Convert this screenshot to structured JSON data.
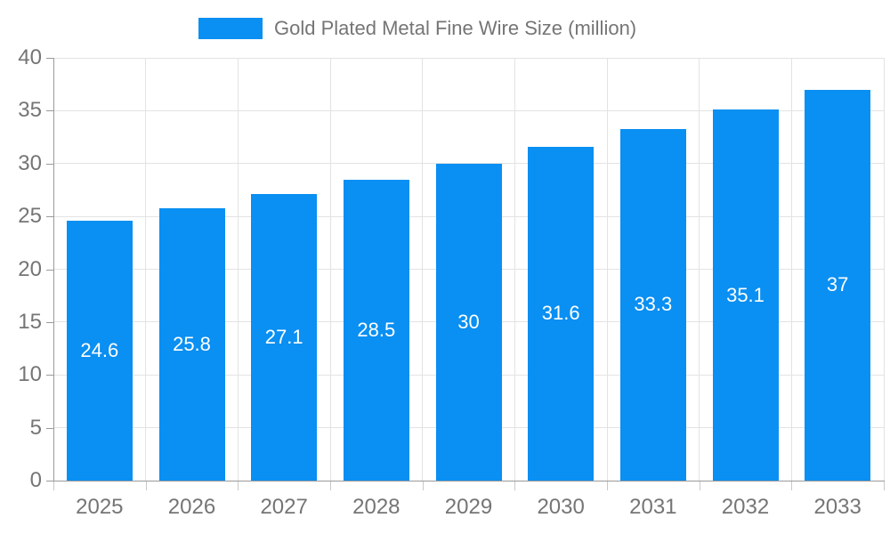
{
  "colors": {
    "bar": "#0a8ff2",
    "axis": "#9a9a9a",
    "grid": "#e3e3e3",
    "tick_text": "#757575",
    "bar_label_text": "#ffffff",
    "background": "#ffffff"
  },
  "legend": {
    "label": "Gold Plated Metal Fine Wire Size (million)"
  },
  "chart_data": {
    "type": "bar",
    "title": "",
    "series_name": "Gold Plated Metal Fine Wire Size (million)",
    "categories": [
      "2025",
      "2026",
      "2027",
      "2028",
      "2029",
      "2030",
      "2031",
      "2032",
      "2033"
    ],
    "values": [
      24.6,
      25.8,
      27.1,
      28.5,
      30,
      31.6,
      33.3,
      35.1,
      37
    ],
    "data_labels": [
      "24.6",
      "25.8",
      "27.1",
      "28.5",
      "30",
      "31.6",
      "33.3",
      "35.1",
      "37"
    ],
    "xlabel": "",
    "ylabel": "",
    "ylim": [
      0,
      40
    ],
    "yticks": [
      0,
      5,
      10,
      15,
      20,
      25,
      30,
      35,
      40
    ],
    "grid": true,
    "legend_position": "top-center",
    "data_label_position": "inside-center"
  }
}
